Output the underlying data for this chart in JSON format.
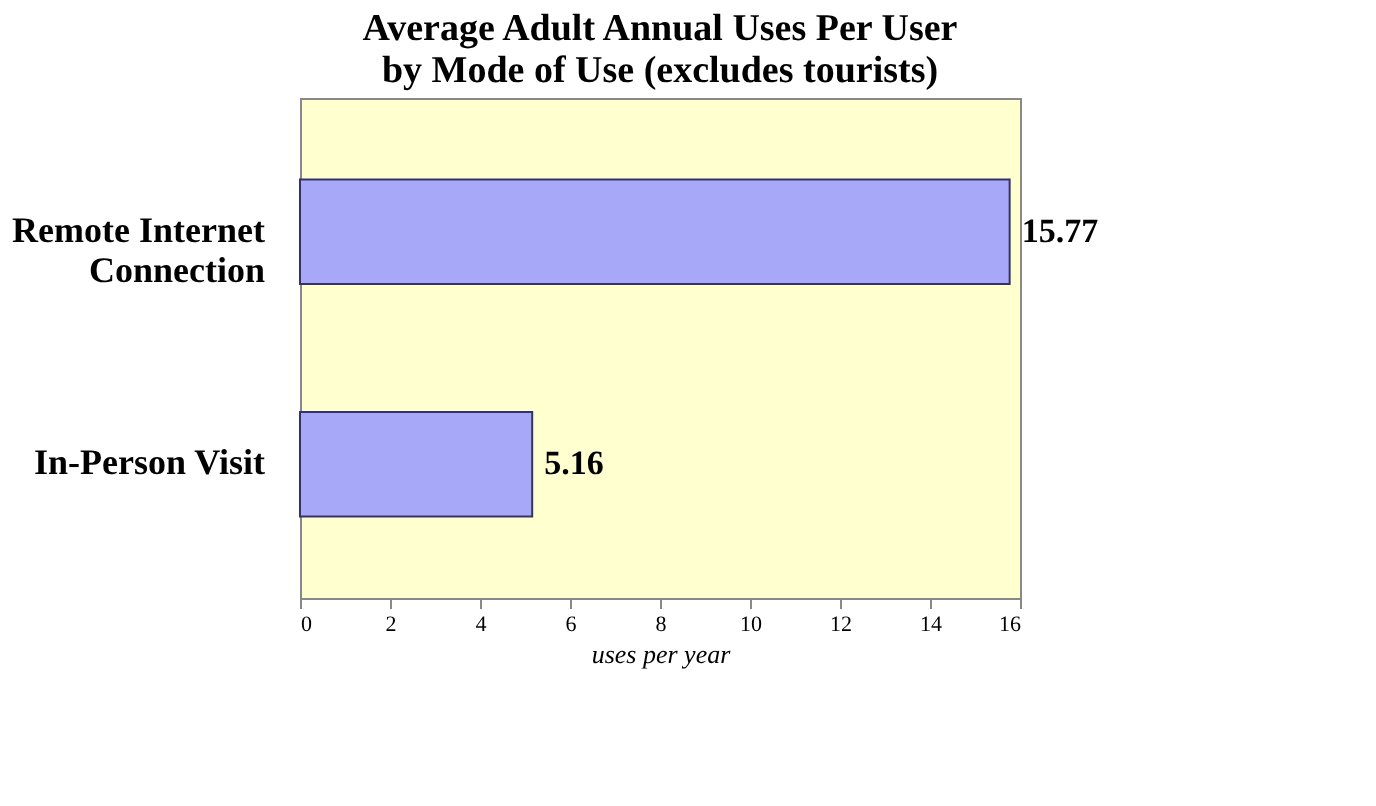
{
  "chart_data": {
    "type": "bar",
    "orientation": "horizontal",
    "title": "Average Adult Annual Uses Per User by Mode of Use (excludes tourists)",
    "xlabel": "uses per year",
    "categories": [
      "Remote Internet Connection",
      "In-Person Visit"
    ],
    "values": [
      15.77,
      5.16
    ],
    "color": "#a8a8f8",
    "xlim": [
      0,
      16
    ],
    "xticks": [
      0,
      2,
      4,
      6,
      8,
      10,
      12,
      14,
      16
    ],
    "data_labels": true,
    "grid": false
  }
}
